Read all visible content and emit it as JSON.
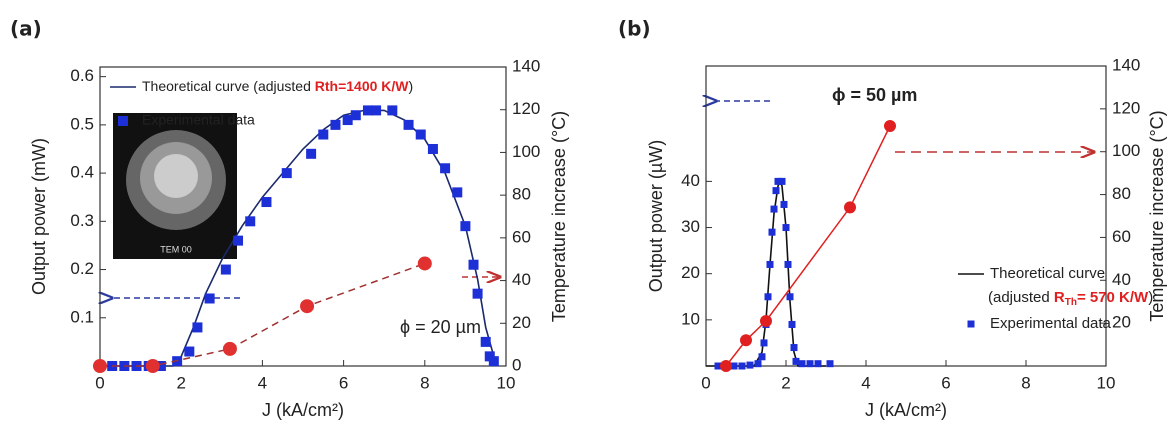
{
  "chart_data": [
    {
      "type": "line",
      "title": "(a)",
      "xlabel": "J (kA/cm²)",
      "ylabel": "Output power (mW)",
      "y2label": "Temperature increase (°C)",
      "xlim": [
        0,
        10
      ],
      "xticks": [
        0,
        2,
        4,
        6,
        8,
        10
      ],
      "ylim": [
        0,
        0.62
      ],
      "yticks": [
        0.1,
        0.2,
        0.3,
        0.4,
        0.5,
        0.6
      ],
      "y2lim": [
        0,
        140
      ],
      "y2ticks": [
        0,
        20,
        40,
        60,
        80,
        100,
        120,
        140
      ],
      "annotation": "ϕ = 20 µm",
      "inset_label": "TEM 00",
      "fit_note": [
        "(adjusted ",
        "Rth=1400 K/W",
        ")"
      ],
      "series": [
        {
          "name": "Theoretical curve",
          "color": "#1a2a6c",
          "x": [
            0,
            1.8,
            2.0,
            2.3,
            2.6,
            3.0,
            3.5,
            4.0,
            4.5,
            5.0,
            5.5,
            6.0,
            6.5,
            7.0,
            7.5,
            8.0,
            8.5,
            9.0,
            9.3,
            9.5,
            9.7,
            9.8
          ],
          "values": [
            0,
            0,
            0.02,
            0.08,
            0.15,
            0.22,
            0.29,
            0.35,
            0.4,
            0.45,
            0.49,
            0.52,
            0.53,
            0.53,
            0.51,
            0.47,
            0.4,
            0.29,
            0.18,
            0.08,
            0.02,
            0
          ]
        },
        {
          "name": "Experimental data",
          "color": "#1d2fd6",
          "x": [
            0,
            0.3,
            0.6,
            0.9,
            1.2,
            1.5,
            1.9,
            2.2,
            2.4,
            2.7,
            3.1,
            3.4,
            3.7,
            4.1,
            4.6,
            5.2,
            5.5,
            5.8,
            6.1,
            6.3,
            6.6,
            6.8,
            7.2,
            7.6,
            7.9,
            8.2,
            8.5,
            8.8,
            9.0,
            9.2,
            9.3,
            9.5,
            9.6,
            9.7
          ],
          "values": [
            0,
            0,
            0,
            0,
            0,
            0,
            0.01,
            0.03,
            0.08,
            0.14,
            0.2,
            0.26,
            0.3,
            0.34,
            0.4,
            0.44,
            0.48,
            0.5,
            0.51,
            0.52,
            0.53,
            0.53,
            0.53,
            0.5,
            0.48,
            0.45,
            0.41,
            0.36,
            0.29,
            0.21,
            0.15,
            0.05,
            0.02,
            0.01
          ]
        },
        {
          "color": "#e03030",
          "axis": "y2",
          "x": [
            0,
            1.3,
            3.2,
            5.1,
            8.0
          ],
          "values": [
            0,
            0,
            8,
            28,
            48
          ]
        }
      ]
    },
    {
      "type": "line",
      "title": "(b)",
      "xlabel": "J (kA/cm²)",
      "ylabel": "Output power (µW)",
      "y2label": "Temperature increase (°C)",
      "xlim": [
        0,
        10
      ],
      "xticks": [
        0,
        2,
        4,
        6,
        8,
        10
      ],
      "ylim": [
        0,
        65
      ],
      "yticks": [
        10,
        20,
        30,
        40
      ],
      "y2lim": [
        0,
        140
      ],
      "y2ticks": [
        20,
        40,
        60,
        80,
        100,
        120,
        140
      ],
      "annotation": "ϕ = 50 µm",
      "fit_note": [
        "(adjusted ",
        "R",
        "Th",
        "= 570 K/W",
        ")"
      ],
      "series": [
        {
          "name": "Theoretical curve",
          "color": "#111111",
          "x": [
            0,
            1.2,
            1.4,
            1.5,
            1.6,
            1.7,
            1.8,
            1.85,
            1.9,
            2.0,
            2.1,
            2.2,
            2.3,
            3.0
          ],
          "values": [
            0,
            0,
            3,
            10,
            22,
            33,
            39,
            40,
            39,
            30,
            14,
            3,
            0,
            0
          ]
        },
        {
          "name": "Experimental data",
          "color": "#1d2fd6",
          "x": [
            0.3,
            0.5,
            0.7,
            0.9,
            1.1,
            1.3,
            1.4,
            1.45,
            1.5,
            1.55,
            1.6,
            1.65,
            1.7,
            1.75,
            1.8,
            1.9,
            1.95,
            2.0,
            2.05,
            2.1,
            2.15,
            2.2,
            2.25,
            2.4,
            2.6,
            2.8,
            3.1
          ],
          "values": [
            0,
            0,
            0,
            0,
            0.2,
            0.5,
            2,
            5,
            9,
            15,
            22,
            29,
            34,
            38,
            40,
            40,
            35,
            30,
            22,
            15,
            9,
            4,
            1,
            0.5,
            0.5,
            0.5,
            0.5
          ]
        },
        {
          "color": "#e02020",
          "axis": "y2",
          "x": [
            0.5,
            1.0,
            1.5,
            3.6,
            4.6
          ],
          "values": [
            0,
            12,
            21,
            74,
            112
          ]
        }
      ]
    }
  ]
}
